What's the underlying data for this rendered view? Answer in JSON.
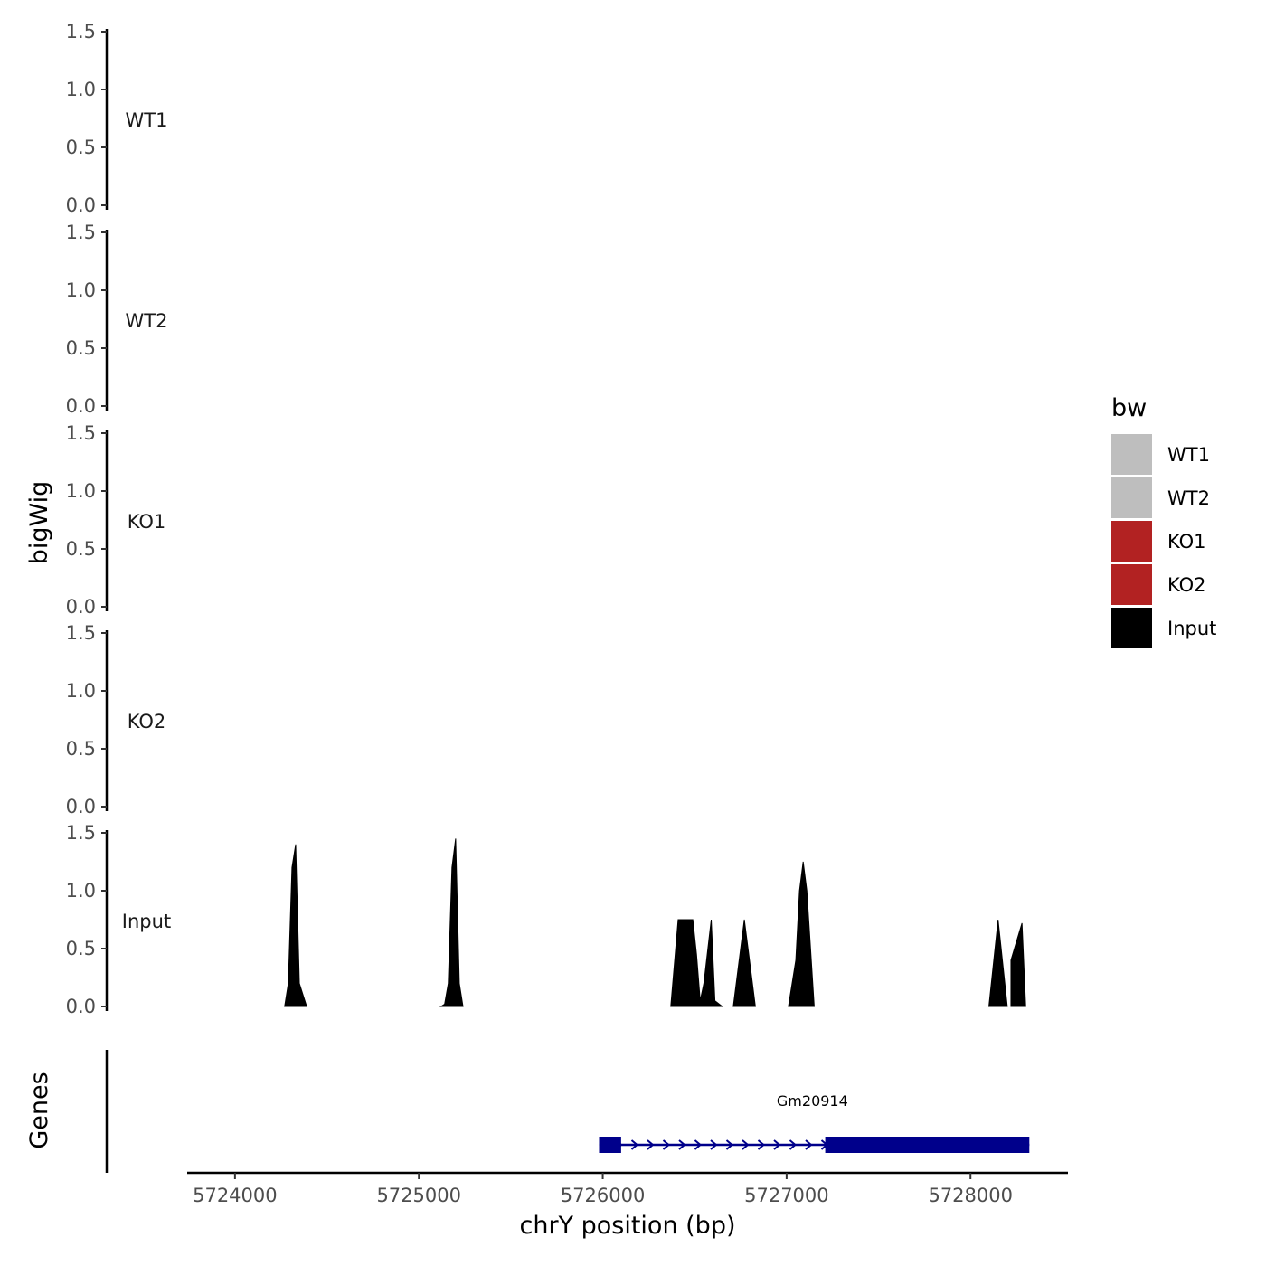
{
  "chart_data": {
    "type": "area",
    "xlabel": "chrY position (bp)",
    "xlim": [
      5723740,
      5728530
    ],
    "x_ticks": [
      5724000,
      5725000,
      5726000,
      5727000,
      5728000
    ],
    "x_tick_labels": [
      "5724000",
      "5725000",
      "5726000",
      "5727000",
      "5728000"
    ],
    "ylabel": "bigWig",
    "ylim": [
      0,
      1.5
    ],
    "y_ticks": [
      0,
      0.5,
      1,
      1.5
    ],
    "y_tick_labels": [
      "0.0",
      "0.5",
      "1.0",
      "1.5"
    ],
    "tracks": [
      {
        "name": "WT1",
        "color": "#bebebe",
        "x": [],
        "y": []
      },
      {
        "name": "WT2",
        "color": "#bebebe",
        "x": [],
        "y": []
      },
      {
        "name": "KO1",
        "color": "#b22222",
        "x": [],
        "y": []
      },
      {
        "name": "KO2",
        "color": "#b22222",
        "x": [],
        "y": []
      },
      {
        "name": "Input",
        "color": "#000000",
        "x": [
          5724270,
          5724290,
          5724310,
          5724330,
          5724350,
          5724390,
          5725120,
          5725140,
          5725160,
          5725180,
          5725200,
          5725220,
          5725240,
          5726370,
          5726410,
          5726490,
          5726510,
          5726530,
          5726550,
          5726590,
          5726610,
          5726650,
          5726710,
          5726770,
          5726830,
          5727010,
          5727050,
          5727070,
          5727090,
          5727110,
          5727150,
          5728100,
          5728150,
          5728200,
          5728220,
          5728280,
          5728300
        ],
        "y": [
          0,
          0.2,
          1.2,
          1.4,
          0.2,
          0,
          0,
          0.02,
          0.2,
          1.2,
          1.45,
          0.2,
          0,
          0,
          0.75,
          0.75,
          0.45,
          0.05,
          0.2,
          0.75,
          0.05,
          0,
          0,
          0.75,
          0,
          0,
          0.4,
          1.0,
          1.25,
          1.0,
          0,
          0,
          0.75,
          0,
          0.4,
          0.72,
          0
        ]
      }
    ],
    "gene_track": {
      "ylabel": "Genes",
      "genes": [
        {
          "name": "Gm20914",
          "start": 5725980,
          "end": 5728320,
          "strand": "+",
          "color": "#00008b",
          "exons": [
            [
              5725980,
              5726100
            ],
            [
              5727210,
              5728320
            ]
          ]
        }
      ]
    },
    "legend": {
      "title": "bw",
      "position": "right",
      "entries": [
        {
          "label": "WT1",
          "color": "#bebebe"
        },
        {
          "label": "WT2",
          "color": "#bebebe"
        },
        {
          "label": "KO1",
          "color": "#b22222"
        },
        {
          "label": "KO2",
          "color": "#b22222"
        },
        {
          "label": "Input",
          "color": "#000000"
        }
      ]
    }
  }
}
